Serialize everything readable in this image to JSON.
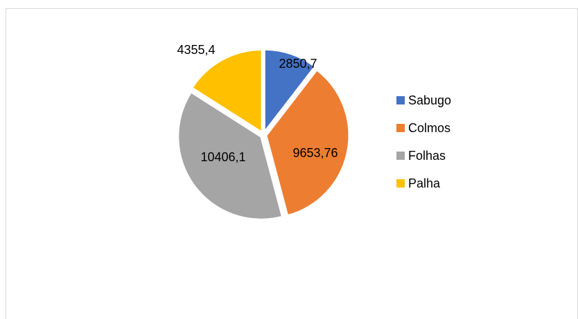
{
  "chart_data": {
    "type": "pie",
    "categories": [
      "Sabugo",
      "Colmos",
      "Folhas",
      "Palha"
    ],
    "values": [
      2850.7,
      9653.76,
      10406.1,
      4355.4
    ],
    "value_labels": [
      "2850,7",
      "9653,76",
      "10406,1",
      "4355,4"
    ],
    "colors": [
      "#4472c4",
      "#ed7d31",
      "#a5a5a5",
      "#ffc000"
    ],
    "legend": "right"
  }
}
